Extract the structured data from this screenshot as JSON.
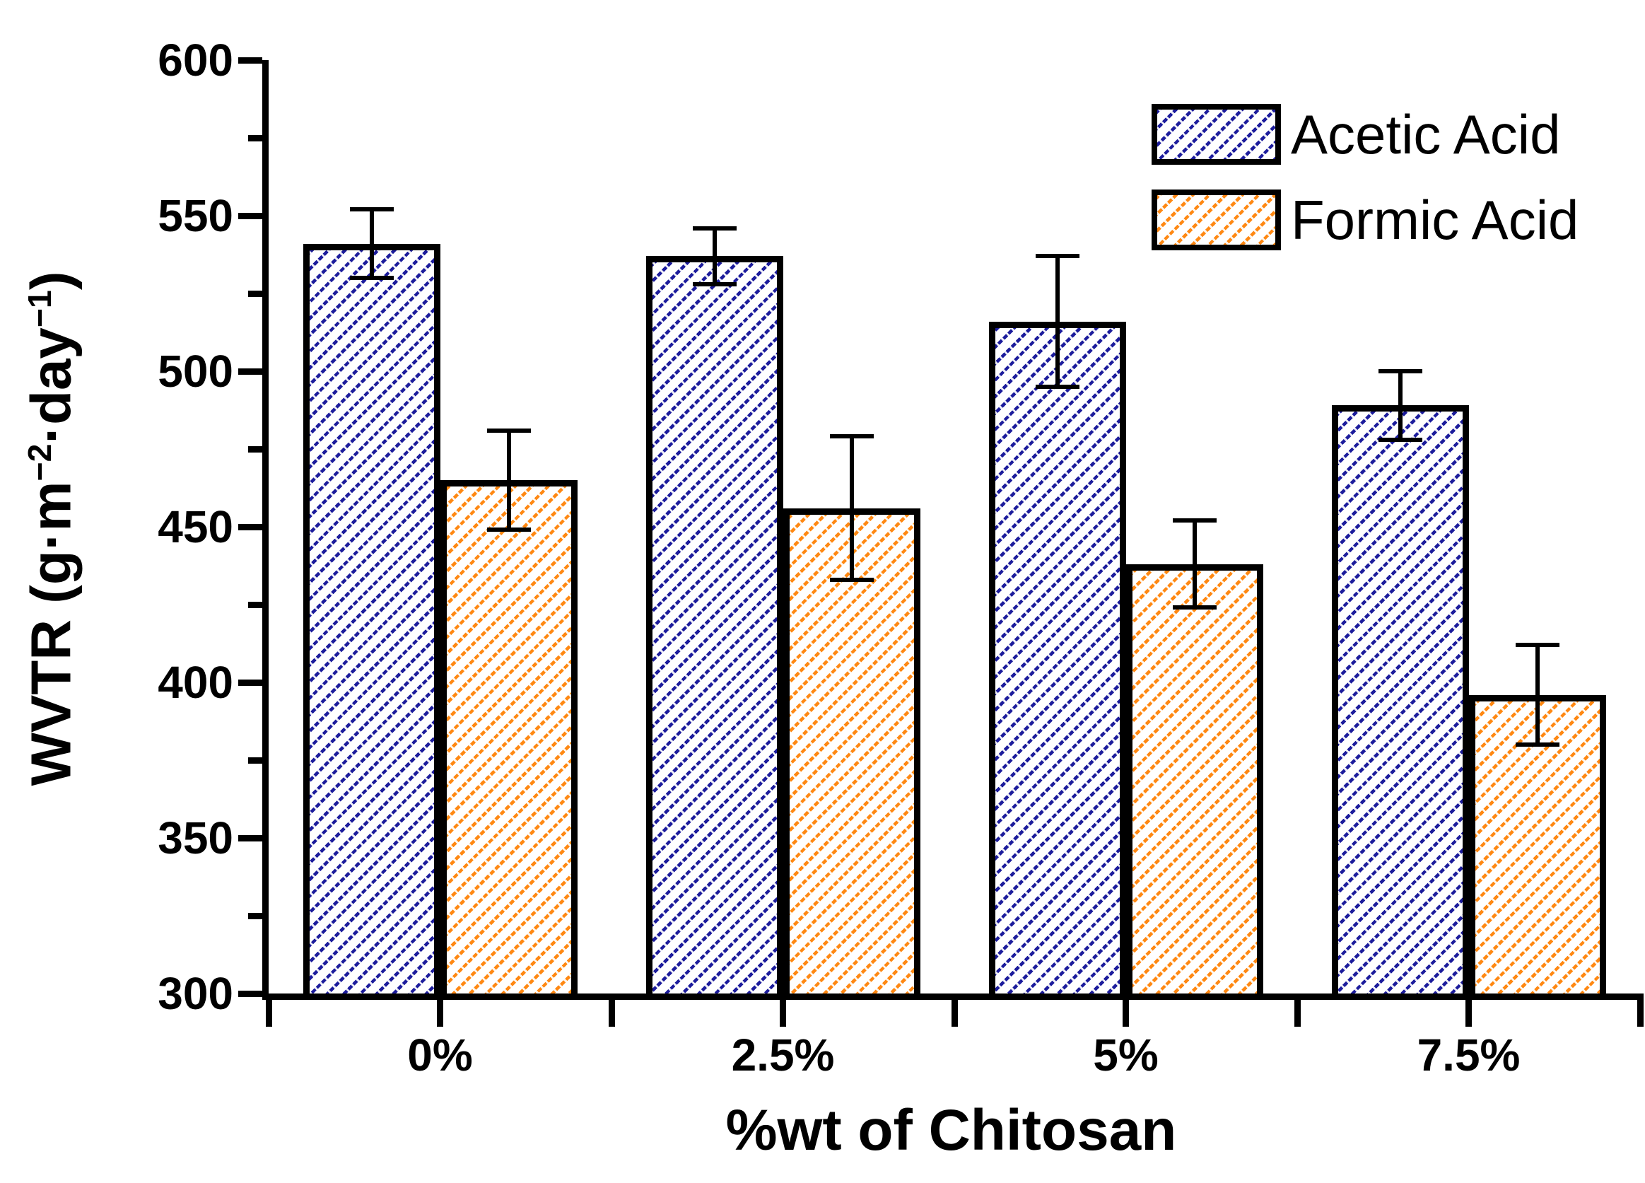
{
  "chart_data": {
    "type": "bar",
    "title": "",
    "categories": [
      "0%",
      "2.5%",
      "5%",
      "7.5%"
    ],
    "series": [
      {
        "name": "Acetic Acid",
        "color": "#1c1c9c",
        "values": [
          541,
          537,
          516,
          489
        ],
        "errors": [
          11,
          9,
          21,
          11
        ]
      },
      {
        "name": "Formic Acid",
        "color": "#ff8812",
        "values": [
          465,
          456,
          438,
          396
        ],
        "errors": [
          16,
          23,
          14,
          16
        ]
      }
    ],
    "xlabel": "%wt of Chitosan",
    "ylabel": "WVTR (g·m⁻²·day⁻¹)",
    "ylabel_rich": [
      "WVTR (g·m",
      {
        "sup": "−2"
      },
      "·day",
      {
        "sup": "−1"
      },
      ")"
    ],
    "ylim": [
      300,
      600
    ],
    "y_major_ticks": [
      300,
      350,
      400,
      450,
      500,
      550,
      600
    ],
    "y_minor_step": 25,
    "grid": false,
    "bar_style": "diagonal-hatch",
    "error_bars": true,
    "legend": {
      "position": "top-right",
      "entries": [
        "Acetic Acid",
        "Formic Acid"
      ]
    }
  }
}
